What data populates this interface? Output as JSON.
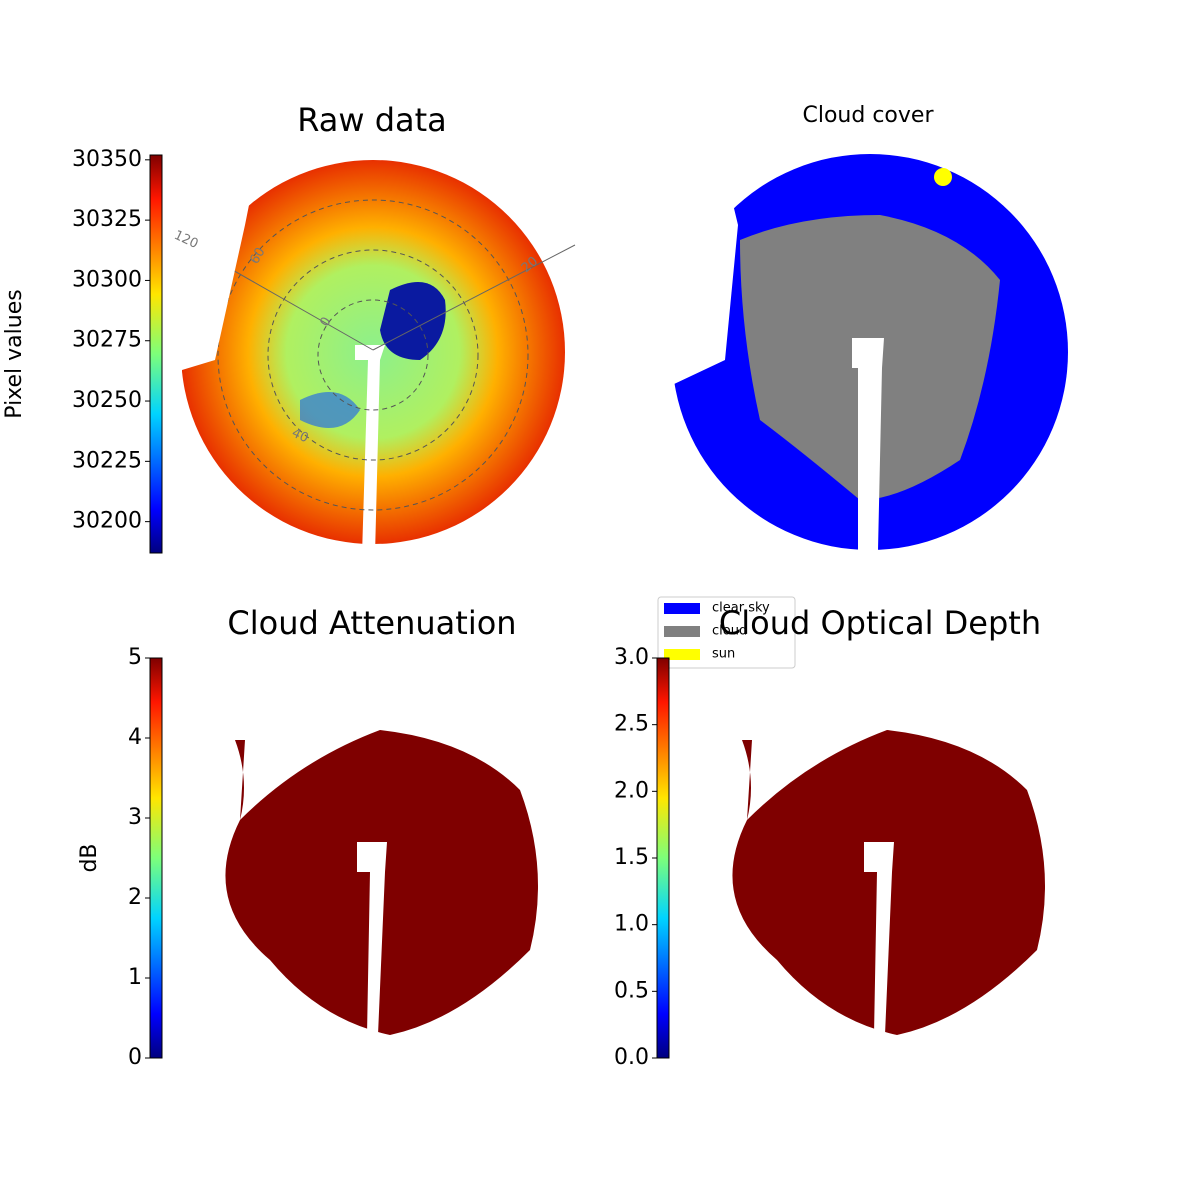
{
  "chart_data": [
    {
      "type": "image",
      "title": "Raw data",
      "colorbar_label": "Pixel values",
      "colormap": "jet",
      "clim": [
        30187,
        30352
      ],
      "cticks": [
        30200,
        30225,
        30250,
        30275,
        30300,
        30325,
        30350
      ],
      "annotations": [
        "120",
        "60",
        "0",
        "40",
        "20"
      ]
    },
    {
      "type": "image",
      "title": "Cloud cover",
      "legend": [
        {
          "name": "clear sky",
          "color": "#0000ff"
        },
        {
          "name": "cloud",
          "color": "#808080"
        },
        {
          "name": "sun",
          "color": "#ffff00"
        }
      ]
    },
    {
      "type": "image",
      "title": "Cloud Attenuation",
      "colorbar_label": "dB",
      "colormap": "jet",
      "clim": [
        0,
        5
      ],
      "cticks": [
        0,
        1,
        2,
        3,
        4,
        5
      ]
    },
    {
      "type": "image",
      "title": "Cloud Optical Depth",
      "colormap": "jet",
      "clim": [
        0,
        3
      ],
      "cticks": [
        {
          "value": 0,
          "label": "0.0"
        },
        0.5,
        {
          "value": 1,
          "label": "1.0"
        },
        1.5,
        {
          "value": 2,
          "label": "2.0"
        },
        2.5,
        {
          "value": 3,
          "label": "3.0"
        }
      ]
    }
  ]
}
